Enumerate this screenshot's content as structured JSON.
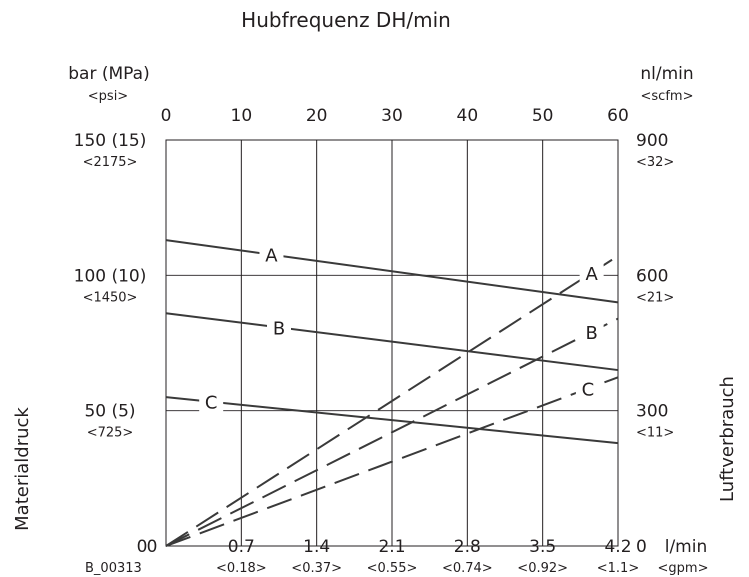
{
  "chart_data": {
    "type": "line",
    "title": "",
    "top_axis": {
      "label": "Hubfrequenz DH/min",
      "range": [
        0,
        60
      ],
      "ticks": [
        "0",
        "10",
        "20",
        "30",
        "40",
        "50",
        "60"
      ]
    },
    "bottom_axis": {
      "unit": "l/min",
      "unit_sub": "<gpm>",
      "range": [
        0,
        4.2
      ],
      "ticks": [
        "0",
        "0.7",
        "1.4",
        "2.1",
        "2.8",
        "3.5",
        "4.2"
      ],
      "ticks_sub": [
        "",
        "<0.18>",
        "<0.37>",
        "<0.55>",
        "<0.74>",
        "<0.92>",
        "<1.1>"
      ]
    },
    "left_axis": {
      "title": "Materialdruck",
      "unit": "bar (MPa)",
      "unit_sub": "<psi>",
      "range": [
        0,
        150
      ],
      "ticks": [
        {
          "value": 150,
          "label": "150 (15)",
          "sub": "<2175>"
        },
        {
          "value": 100,
          "label": "100 (10)",
          "sub": "<1450>"
        },
        {
          "value": 50,
          "label": "50 (5)",
          "sub": "<725>"
        },
        {
          "value": 0,
          "label": "0",
          "sub": ""
        }
      ]
    },
    "right_axis": {
      "title": "Luftverbrauch",
      "unit": "nl/min",
      "unit_sub": "<scfm>",
      "range": [
        0,
        900
      ],
      "ticks": [
        {
          "value": 900,
          "label": "900",
          "sub": "<32>"
        },
        {
          "value": 600,
          "label": "600",
          "sub": "<21>"
        },
        {
          "value": 300,
          "label": "300",
          "sub": "<11>"
        },
        {
          "value": 0,
          "label": "0",
          "sub": ""
        }
      ]
    },
    "grid": {
      "vertical": true,
      "horizontal_at": [
        100,
        50
      ]
    },
    "series": [
      {
        "name": "A",
        "style": "solid",
        "axis": "left",
        "x": [
          0,
          60
        ],
        "y": [
          113,
          90
        ],
        "label_x": 14
      },
      {
        "name": "B",
        "style": "solid",
        "axis": "left",
        "x": [
          0,
          60
        ],
        "y": [
          86,
          65
        ],
        "label_x": 15
      },
      {
        "name": "C",
        "style": "solid",
        "axis": "left",
        "x": [
          0,
          60
        ],
        "y": [
          55,
          38
        ],
        "label_x": 6
      },
      {
        "name": "A",
        "style": "dashed",
        "axis": "right",
        "x": [
          0,
          60
        ],
        "y": [
          0,
          643
        ],
        "label_x": 56.5
      },
      {
        "name": "B",
        "style": "dashed",
        "axis": "right",
        "x": [
          0,
          60
        ],
        "y": [
          0,
          504
        ],
        "label_x": 56.5
      },
      {
        "name": "C",
        "style": "dashed",
        "axis": "right",
        "x": [
          0,
          60
        ],
        "y": [
          0,
          374
        ],
        "label_x": 56
      }
    ],
    "footnote": "B_00313",
    "colors": {
      "line": "#3a3a3a",
      "grid": "#231f20"
    }
  }
}
